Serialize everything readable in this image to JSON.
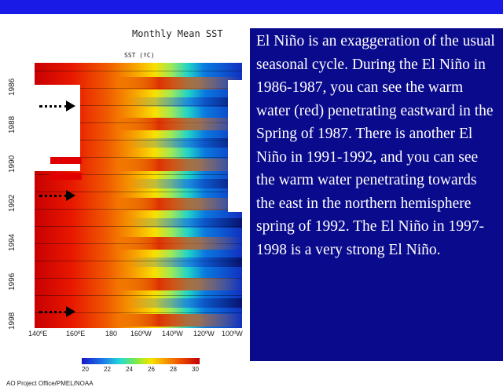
{
  "figure": {
    "title": "Monthly Mean SST",
    "subtitle": "SST (ºC)",
    "year_labels": [
      "1986",
      "1988",
      "1990",
      "1992",
      "1994",
      "1996",
      "1998"
    ],
    "lon_labels": [
      "140ºE",
      "160ºE",
      "180",
      "160ºW",
      "140ºW",
      "120ºW",
      "100ºW"
    ],
    "colorbar_labels": [
      "20",
      "22",
      "24",
      "26",
      "28",
      "30"
    ],
    "credit": "AO Project Office/PMEL/NOAA",
    "colors": {
      "hot": "#c80000",
      "warm": "#f7a000",
      "mid": "#f8e000",
      "cool": "#1fd3c8",
      "cold": "#1030c0",
      "marker": "#e00000"
    }
  },
  "slide": {
    "text": "El Niño is an exaggeration of the usual seasonal cycle. During the El Niño in 1986-1987, you can see the warm water (red) penetrating eastward in the Spring of 1987. There is another El Niño  in 1991-1992, and you can see the warm water penetrating towards the east in the northern hemisphere spring of 1992. The El Niño in 1997-1998 is a very strong  El Niño.",
    "panel_color": "#0a0a8c",
    "bar_color": "#1a1ae6"
  }
}
